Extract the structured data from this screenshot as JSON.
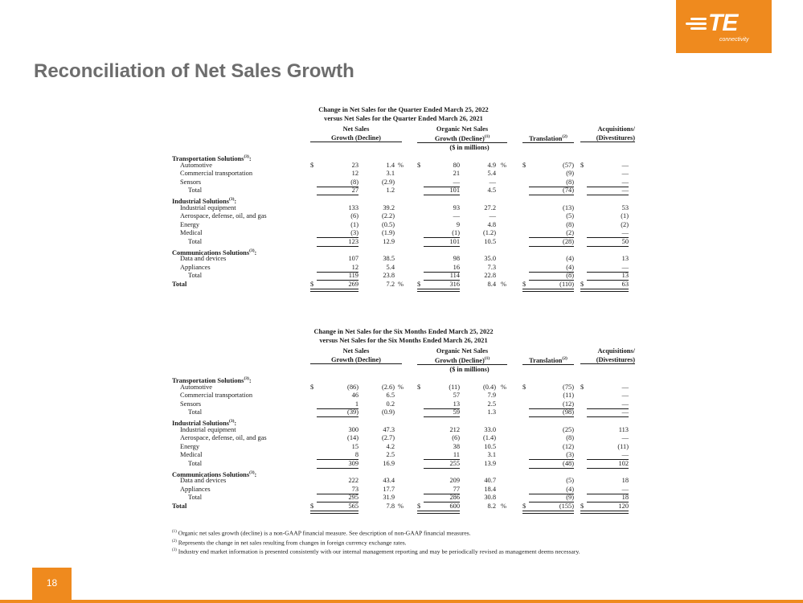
{
  "logo": {
    "brand": "TE",
    "sub": "connectivity"
  },
  "title": "Reconciliation of Net Sales Growth",
  "headers": {
    "col1_l1": "Net Sales",
    "col1_l2": "Growth (Decline)",
    "col2_l1": "Organic Net Sales",
    "col2_l2": "Growth (Decline)",
    "col2_sup": "(1)",
    "col3": "Translation",
    "col3_sup": "(2)",
    "col4_l1": "Acquisitions/",
    "col4_l2": "(Divestitures)",
    "units": "($ in millions)"
  },
  "tables": [
    {
      "heading1": "Change in Net Sales for the Quarter Ended March 25, 2022",
      "heading2": "versus Net Sales for the Quarter Ended March 26, 2021",
      "rows": [
        {
          "type": "sec",
          "label": "Transportation Solutions",
          "sup": "(3)",
          "suffix": ":"
        },
        {
          "type": "item",
          "label": "Automotive",
          "cur": true,
          "v": [
            "23",
            "1.4",
            "80",
            "4.9",
            "(57)",
            "—"
          ],
          "pct": true
        },
        {
          "type": "item",
          "label": "Commercial transportation",
          "v": [
            "12",
            "3.1",
            "21",
            "5.4",
            "(9)",
            "—"
          ]
        },
        {
          "type": "item",
          "label": "Sensors",
          "v": [
            "(8)",
            "(2.9)",
            "—",
            "—",
            "(8)",
            "—"
          ],
          "under": true
        },
        {
          "type": "sub",
          "label": "Total",
          "v": [
            "27",
            "1.2",
            "101",
            "4.5",
            "(74)",
            "—"
          ],
          "under": true
        },
        {
          "type": "sec",
          "label": "Industrial Solutions",
          "sup": "(3)",
          "suffix": ":"
        },
        {
          "type": "item",
          "label": "Industrial equipment",
          "v": [
            "133",
            "39.2",
            "93",
            "27.2",
            "(13)",
            "53"
          ]
        },
        {
          "type": "item",
          "label": "Aerospace, defense, oil, and gas",
          "v": [
            "(6)",
            "(2.2)",
            "—",
            "—",
            "(5)",
            "(1)"
          ]
        },
        {
          "type": "item",
          "label": "Energy",
          "v": [
            "(1)",
            "(0.5)",
            "9",
            "4.8",
            "(8)",
            "(2)"
          ]
        },
        {
          "type": "item",
          "label": "Medical",
          "v": [
            "(3)",
            "(1.9)",
            "(1)",
            "(1.2)",
            "(2)",
            "—"
          ],
          "under": true
        },
        {
          "type": "sub",
          "label": "Total",
          "v": [
            "123",
            "12.9",
            "101",
            "10.5",
            "(28)",
            "50"
          ],
          "under": true
        },
        {
          "type": "sec",
          "label": "Communications Solutions",
          "sup": "(3)",
          "suffix": ":"
        },
        {
          "type": "item",
          "label": "Data and devices",
          "v": [
            "107",
            "38.5",
            "98",
            "35.0",
            "(4)",
            "13"
          ]
        },
        {
          "type": "item",
          "label": "Appliances",
          "v": [
            "12",
            "5.4",
            "16",
            "7.3",
            "(4)",
            "—"
          ],
          "under": true
        },
        {
          "type": "sub",
          "label": "Total",
          "v": [
            "119",
            "23.8",
            "114",
            "22.8",
            "(8)",
            "13"
          ],
          "under": true
        },
        {
          "type": "grand",
          "label": "Total",
          "cur": true,
          "pct": true,
          "v": [
            "269",
            "7.2",
            "316",
            "8.4",
            "(110)",
            "63"
          ]
        }
      ]
    },
    {
      "heading1": "Change in Net Sales for the Six Months Ended March 25, 2022",
      "heading2": "versus Net Sales for the Six Months Ended March 26, 2021",
      "rows": [
        {
          "type": "sec",
          "label": "Transportation Solutions",
          "sup": "(3)",
          "suffix": ":"
        },
        {
          "type": "item",
          "label": "Automotive",
          "cur": true,
          "v": [
            "(86)",
            "(2.6)",
            "(11)",
            "(0.4)",
            "(75)",
            "—"
          ],
          "pct": true
        },
        {
          "type": "item",
          "label": "Commercial transportation",
          "v": [
            "46",
            "6.5",
            "57",
            "7.9",
            "(11)",
            "—"
          ]
        },
        {
          "type": "item",
          "label": "Sensors",
          "v": [
            "1",
            "0.2",
            "13",
            "2.5",
            "(12)",
            "—"
          ],
          "under": true
        },
        {
          "type": "sub",
          "label": "Total",
          "v": [
            "(39)",
            "(0.9)",
            "59",
            "1.3",
            "(98)",
            "—"
          ],
          "under": true
        },
        {
          "type": "sec",
          "label": "Industrial Solutions",
          "sup": "(3)",
          "suffix": ":"
        },
        {
          "type": "item",
          "label": "Industrial equipment",
          "v": [
            "300",
            "47.3",
            "212",
            "33.0",
            "(25)",
            "113"
          ]
        },
        {
          "type": "item",
          "label": "Aerospace, defense, oil, and gas",
          "v": [
            "(14)",
            "(2.7)",
            "(6)",
            "(1.4)",
            "(8)",
            "—"
          ]
        },
        {
          "type": "item",
          "label": "Energy",
          "v": [
            "15",
            "4.2",
            "38",
            "10.5",
            "(12)",
            "(11)"
          ]
        },
        {
          "type": "item",
          "label": "Medical",
          "v": [
            "8",
            "2.5",
            "11",
            "3.1",
            "(3)",
            "—"
          ],
          "under": true
        },
        {
          "type": "sub",
          "label": "Total",
          "v": [
            "309",
            "16.9",
            "255",
            "13.9",
            "(48)",
            "102"
          ],
          "under": true
        },
        {
          "type": "sec",
          "label": "Communications Solutions",
          "sup": "(3)",
          "suffix": ":"
        },
        {
          "type": "item",
          "label": "Data and devices",
          "v": [
            "222",
            "43.4",
            "209",
            "40.7",
            "(5)",
            "18"
          ]
        },
        {
          "type": "item",
          "label": "Appliances",
          "v": [
            "73",
            "17.7",
            "77",
            "18.4",
            "(4)",
            "—"
          ],
          "under": true
        },
        {
          "type": "sub",
          "label": "Total",
          "v": [
            "295",
            "31.9",
            "286",
            "30.8",
            "(9)",
            "18"
          ],
          "under": true
        },
        {
          "type": "grand",
          "label": "Total",
          "cur": true,
          "pct": true,
          "v": [
            "565",
            "7.8",
            "600",
            "8.2",
            "(155)",
            "120"
          ]
        }
      ]
    }
  ],
  "symbols": {
    "dollar": "$",
    "pct": "%"
  },
  "notes": [
    {
      "sup": "(1)",
      "text": " Organic net sales growth (decline) is a non-GAAP financial measure. See description of non-GAAP financial measures."
    },
    {
      "sup": "(2)",
      "text": " Represents the change in net sales resulting from changes in foreign currency exchange rates."
    },
    {
      "sup": "(3)",
      "text": " Industry end market information is presented consistently with our internal management reporting and may be periodically revised as management deems necessary."
    }
  ],
  "page_number": "18"
}
